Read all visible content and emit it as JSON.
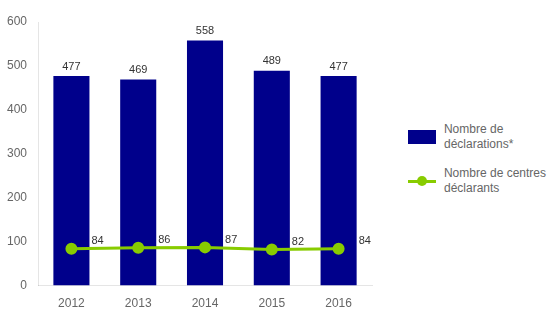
{
  "chart_data": {
    "type": "bar",
    "categories": [
      "2012",
      "2013",
      "2014",
      "2015",
      "2016"
    ],
    "series": [
      {
        "name": "Nombre de\ndéclarations*",
        "type": "bar",
        "color": "#00008B",
        "values": [
          477,
          469,
          558,
          489,
          477
        ]
      },
      {
        "name": "Nombre de centres\ndéclarants",
        "type": "line",
        "color": "#88CC00",
        "marker": "circle",
        "values": [
          84,
          86,
          87,
          82,
          84
        ]
      }
    ],
    "ylim": [
      0,
      600
    ],
    "yticks": [
      0,
      100,
      200,
      300,
      400,
      500,
      600
    ],
    "grid": false,
    "legend": "right",
    "data_labels": true
  }
}
